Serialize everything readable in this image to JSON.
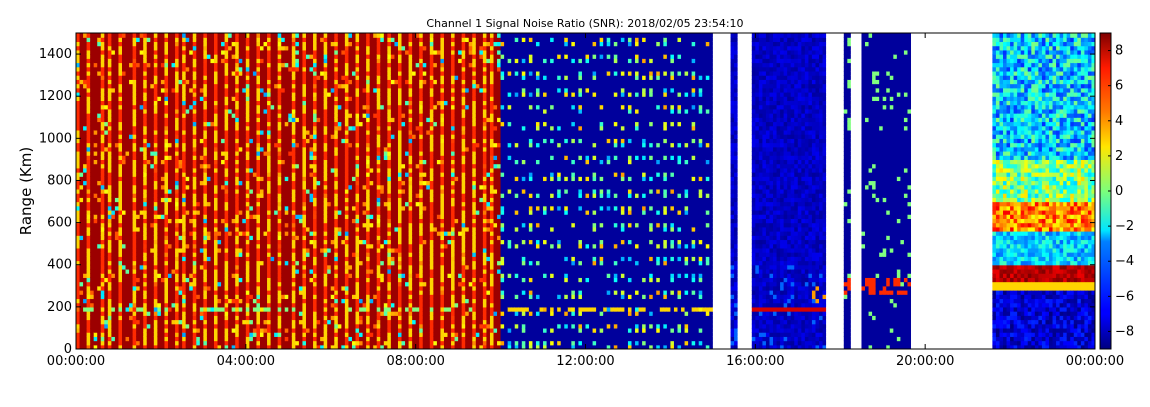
{
  "chart_data": {
    "type": "heatmap",
    "title": "Channel 1 Signal Noise Ratio (SNR): 2018/02/05 23:54:10",
    "xlabel": "",
    "ylabel": "Range (Km)",
    "xlim": [
      "00:00:00",
      "24:00:00"
    ],
    "ylim": [
      0,
      1500
    ],
    "x_ticks": [
      "00:00:00",
      "04:00:00",
      "08:00:00",
      "12:00:00",
      "16:00:00",
      "20:00:00",
      "00:00:00"
    ],
    "y_ticks": [
      0,
      200,
      400,
      600,
      800,
      1000,
      1200,
      1400
    ],
    "colorbar": {
      "colormap": "jet",
      "vmin": -9,
      "vmax": 9,
      "ticks": [
        -8,
        -6,
        -4,
        -2,
        0,
        2,
        4,
        6,
        8
      ]
    },
    "grid": false,
    "regions": [
      {
        "x_start": "00:00:00",
        "x_end": "10:00:00",
        "description": "mostly saturated high SNR (~8) with periodic vertical streaks of mid values",
        "typical_snr": 8
      },
      {
        "x_start": "10:00:00",
        "x_end": "15:00:00",
        "description": "low SNR background (~-8) with sparse bright dots on a regular grid; faint horizontal line near 180 km",
        "typical_snr": -8
      },
      {
        "x_start": "15:00:00",
        "x_end": "15:25:00",
        "description": "no data",
        "typical_snr": null
      },
      {
        "x_start": "15:35:00",
        "x_end": "15:55:00",
        "description": "no data",
        "typical_snr": null
      },
      {
        "x_start": "15:55:00",
        "x_end": "17:40:00",
        "description": "low SNR with strong echo layer near 180 km",
        "typical_snr": -8
      },
      {
        "x_start": "17:40:00",
        "x_end": "18:05:00",
        "description": "no data",
        "typical_snr": null
      },
      {
        "x_start": "18:15:00",
        "x_end": "18:28:00",
        "description": "no data",
        "typical_snr": null
      },
      {
        "x_start": "21:15:00",
        "x_end": "21:30:00",
        "description": "no data",
        "typical_snr": null
      },
      {
        "x_start": "19:35:00",
        "x_end": "21:15:00",
        "description": "no data",
        "typical_snr": null
      },
      {
        "x_start": "21:35:00",
        "x_end": "23:55:00",
        "description": "strong echo layer 280-400 km (~8), secondary layer 550-700 km (~4), noisy above",
        "typical_snr": 2
      }
    ]
  }
}
